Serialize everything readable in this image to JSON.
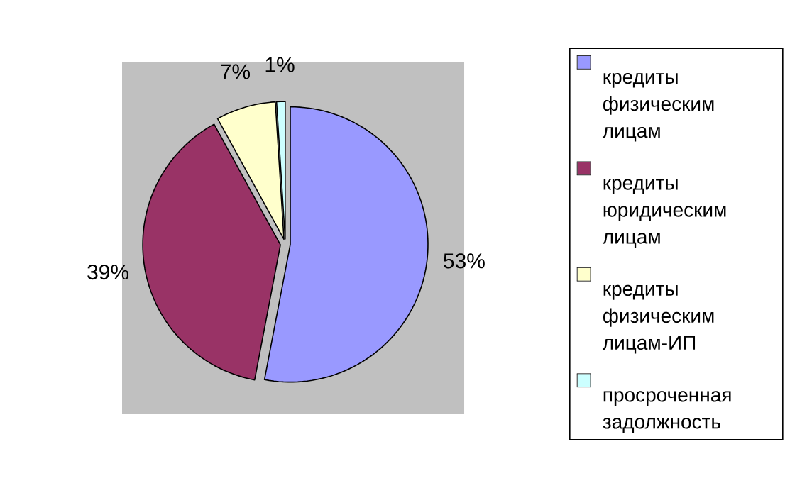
{
  "chart_data": {
    "type": "pie",
    "categories": [
      "кредиты физическим лицам",
      "кредиты юридическим лицам",
      "кредиты физическим лицам-ИП",
      "просроченная задолжность"
    ],
    "values": [
      53,
      39,
      7,
      1
    ],
    "value_labels": [
      "53%",
      "39%",
      "7%",
      "1%"
    ],
    "colors": [
      "#9999ff",
      "#993366",
      "#ffffcc",
      "#ccffff"
    ],
    "legend": "right"
  }
}
